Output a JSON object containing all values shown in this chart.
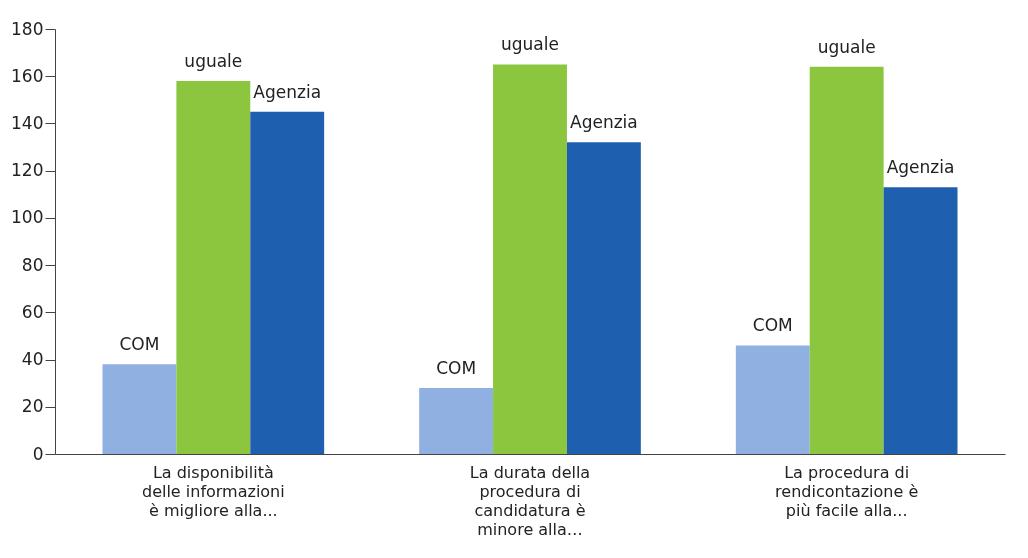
{
  "chart_data": {
    "type": "bar",
    "categories": [
      "La disponibilità delle informazioni è migliore alla...",
      "La durata della procedura di candidatura è minore alla…",
      "La procedura di rendicontazione è più facile alla..."
    ],
    "series": [
      {
        "name": "COM",
        "color": "#8fb0e0",
        "values": [
          38,
          28,
          46
        ]
      },
      {
        "name": "uguale",
        "color": "#8cc63f",
        "values": [
          158,
          165,
          164
        ]
      },
      {
        "name": "Agenzia",
        "color": "#1f5fb0",
        "values": [
          145,
          132,
          113
        ]
      }
    ],
    "ylim": [
      0,
      180
    ],
    "yticks": [
      0,
      20,
      40,
      60,
      80,
      100,
      120,
      140,
      160,
      180
    ],
    "grid": false,
    "legend": false
  }
}
